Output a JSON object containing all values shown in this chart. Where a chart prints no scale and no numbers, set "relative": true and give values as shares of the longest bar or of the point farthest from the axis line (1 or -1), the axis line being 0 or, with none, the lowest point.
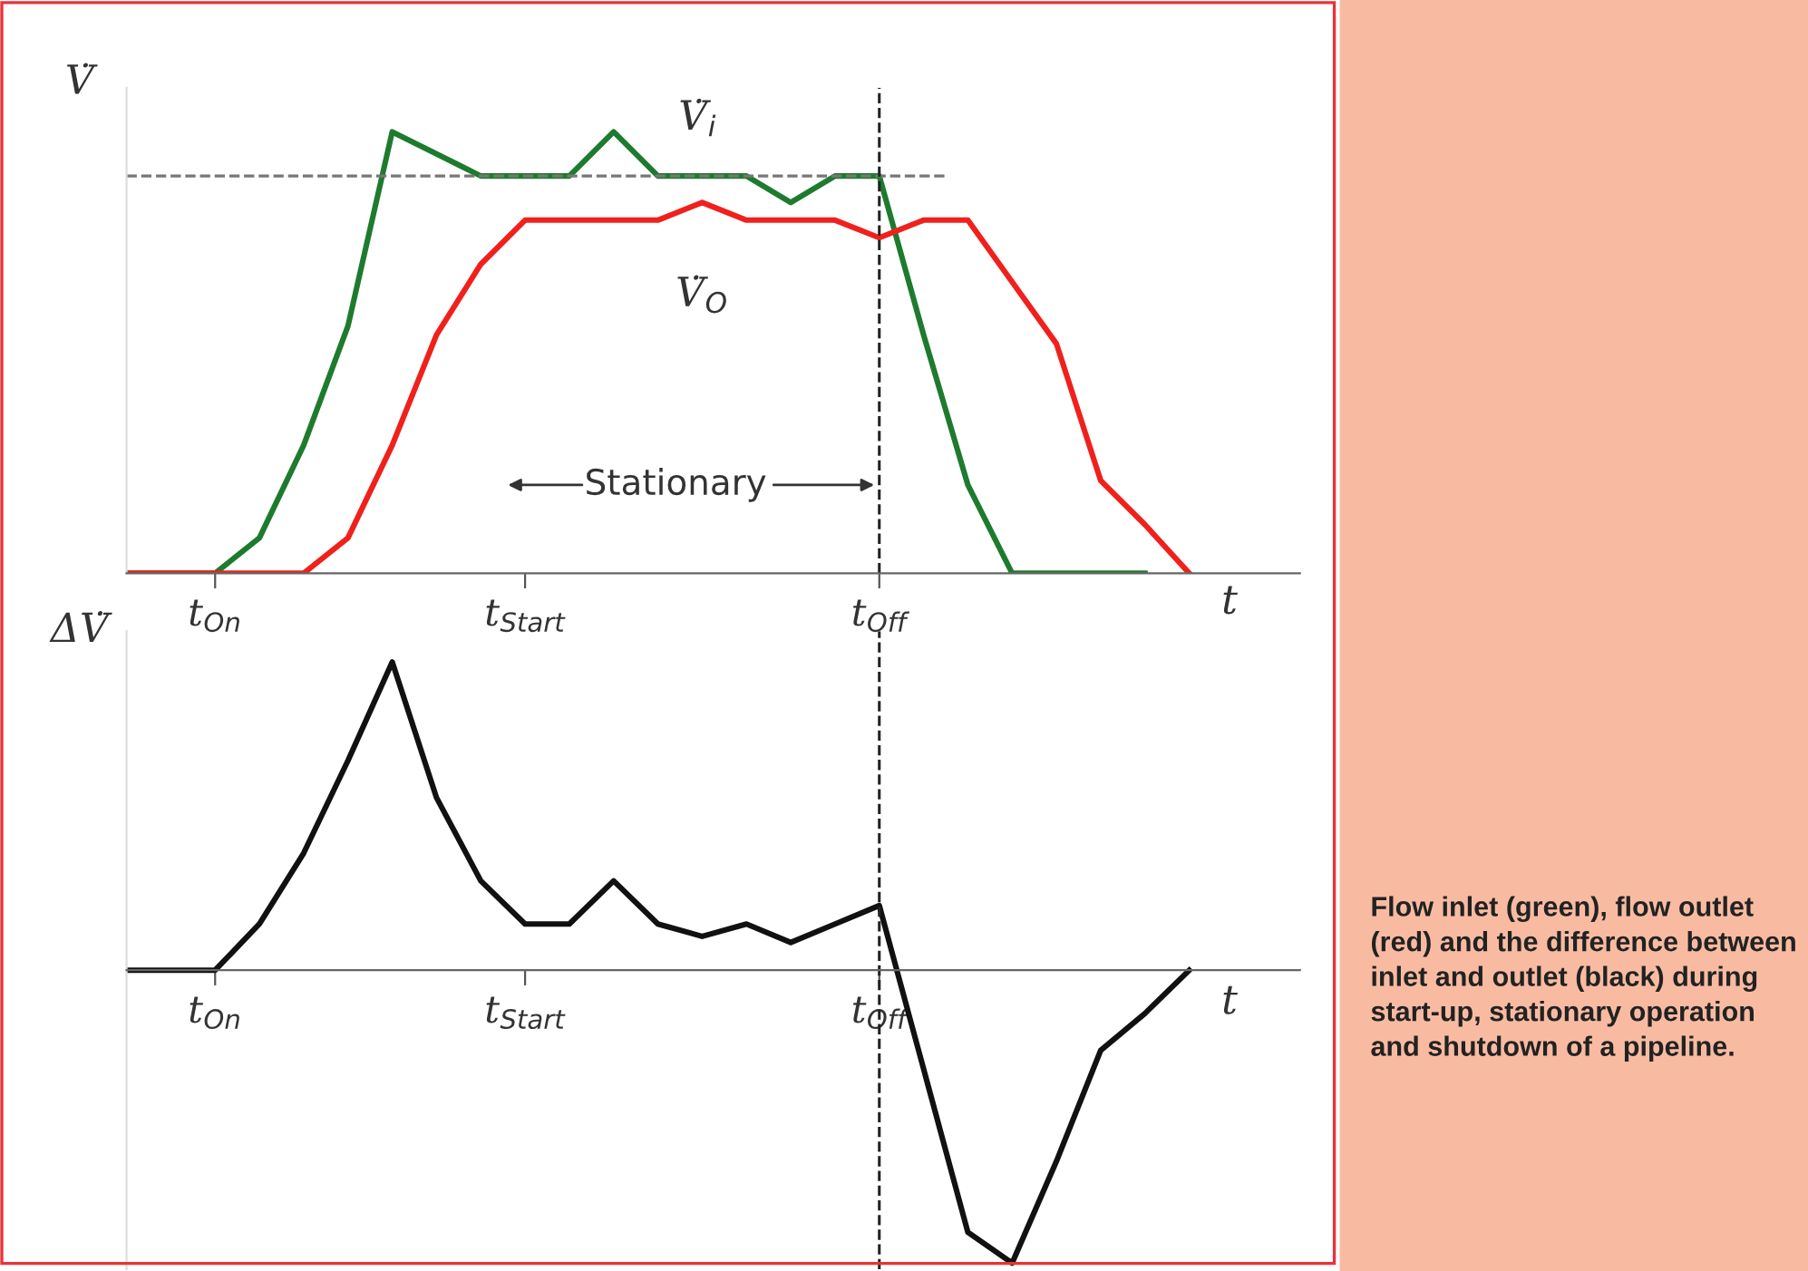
{
  "chart_data": [
    {
      "type": "line",
      "relative": true,
      "ylabel": "V̇",
      "xlabel": "t",
      "categories": [
        null,
        null,
        "t$_{On}$",
        null,
        null,
        null,
        null,
        null,
        null,
        "t$_{Start}$",
        null,
        null,
        null,
        null,
        null,
        null,
        null,
        "t$_{Off}$",
        null,
        null,
        null,
        null,
        null,
        null,
        null
      ],
      "series": [
        {
          "color": "#1e7b2e",
          "values": [
            0,
            0,
            0,
            0.08,
            0.29,
            0.56,
            1.0,
            0.95,
            0.9,
            0.9,
            0.9,
            1.0,
            0.9,
            0.9,
            0.9,
            0.84,
            0.9,
            0.9,
            0.54,
            0.2,
            0,
            0,
            0,
            0,
            null
          ]
        },
        {
          "color": "#f0201c",
          "values": [
            0,
            0,
            0,
            0,
            0,
            0.08,
            0.29,
            0.54,
            0.7,
            0.8,
            0.8,
            0.8,
            0.8,
            0.84,
            0.8,
            0.8,
            0.8,
            0.76,
            0.8,
            0.8,
            0.66,
            0.52,
            0.21,
            0.11,
            0
          ]
        }
      ],
      "ref_lines": [
        {
          "axis": "y",
          "value": 0.9,
          "color": "#777777",
          "line_style": "dashed"
        },
        {
          "axis": "x",
          "value": "t$_{Off}$",
          "color": "#222222",
          "line_style": "dashed"
        }
      ],
      "annotations": [
        "V̇$_{i}$",
        "V̇$_{O}$",
        "Stationary",
        "Flow inlet (green), flow outlet (red) and the difference between inlet and outlet (black) during start-up, stationary operation and shutdown of a pipeline."
      ],
      "grid": false,
      "legend": false,
      "marker": "none",
      "line_style": "solid"
    },
    {
      "type": "line",
      "relative": true,
      "ylabel": "ΔV̇",
      "xlabel": "t",
      "categories": [
        null,
        null,
        "t$_{On}$",
        null,
        null,
        null,
        null,
        null,
        null,
        "t$_{Start}$",
        null,
        null,
        null,
        null,
        null,
        null,
        null,
        "t$_{Off}$",
        null,
        null,
        null,
        null,
        null,
        null,
        null
      ],
      "series": [
        {
          "color": "#111111",
          "values": [
            0,
            0,
            0,
            0.15,
            0.38,
            0.68,
            1.0,
            0.56,
            0.29,
            0.15,
            0.15,
            0.29,
            0.15,
            0.11,
            0.15,
            0.09,
            0.15,
            0.21,
            -0.32,
            -0.85,
            -0.95,
            -0.62,
            -0.26,
            -0.14,
            0
          ]
        }
      ],
      "ref_lines": [
        {
          "axis": "x",
          "value": "t$_{Off}$",
          "color": "#222222",
          "line_style": "dashed"
        }
      ],
      "grid": false,
      "legend": false,
      "marker": "none",
      "line_style": "solid"
    }
  ]
}
